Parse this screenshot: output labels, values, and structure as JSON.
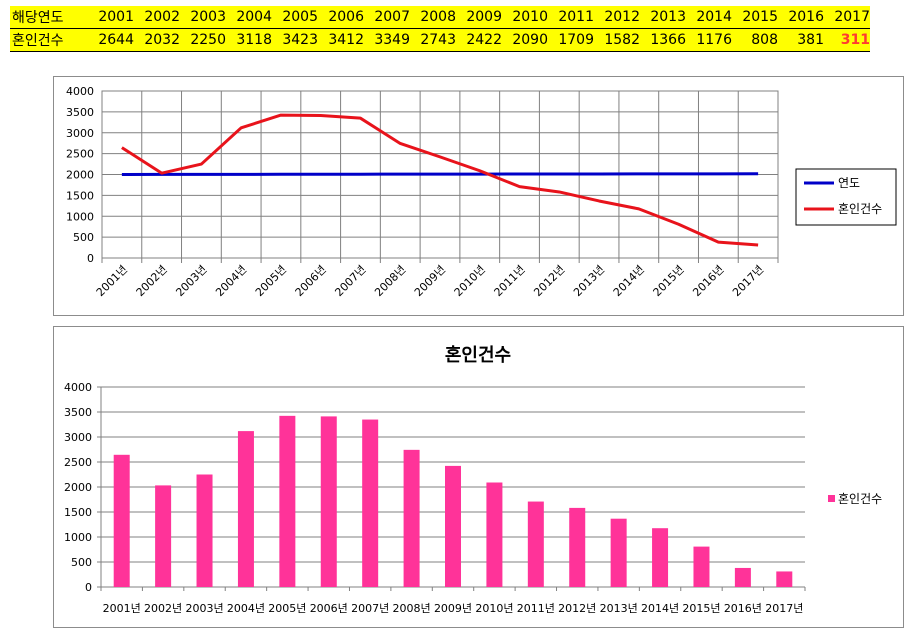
{
  "table": {
    "row1_label": "해당연도",
    "row2_label": "혼인건수",
    "years": [
      "2001",
      "2002",
      "2003",
      "2004",
      "2005",
      "2006",
      "2007",
      "2008",
      "2009",
      "2010",
      "2011",
      "2012",
      "2013",
      "2014",
      "2015",
      "2016",
      "2017"
    ],
    "counts": [
      "2644",
      "2032",
      "2250",
      "3118",
      "3423",
      "3412",
      "3349",
      "2743",
      "2422",
      "2090",
      "1709",
      "1582",
      "1366",
      "1176",
      "808",
      "381",
      "311"
    ],
    "highlight_color": "#ff3b30"
  },
  "chart_data": [
    {
      "type": "line",
      "categories": [
        "2001년",
        "2002년",
        "2003년",
        "2004년",
        "2005년",
        "2006년",
        "2007년",
        "2008년",
        "2009년",
        "2010년",
        "2011년",
        "2012년",
        "2013년",
        "2014년",
        "2015년",
        "2016년",
        "2017년"
      ],
      "series": [
        {
          "name": "연도",
          "color": "#0000c8",
          "values": [
            2001,
            2002,
            2003,
            2004,
            2005,
            2006,
            2007,
            2008,
            2009,
            2010,
            2011,
            2012,
            2013,
            2014,
            2015,
            2016,
            2017
          ]
        },
        {
          "name": "혼인건수",
          "color": "#e8131b",
          "values": [
            2644,
            2032,
            2250,
            3118,
            3423,
            3412,
            3349,
            2743,
            2422,
            2090,
            1709,
            1582,
            1366,
            1176,
            808,
            381,
            311
          ]
        }
      ],
      "yticks": [
        "0",
        "500",
        "1000",
        "1500",
        "2000",
        "2500",
        "3000",
        "3500",
        "4000"
      ],
      "ylim": [
        0,
        4000
      ],
      "grid": true,
      "legend": "right"
    },
    {
      "type": "bar",
      "title": "혼인건수",
      "categories": [
        "2001년",
        "2002년",
        "2003년",
        "2004년",
        "2005년",
        "2006년",
        "2007년",
        "2008년",
        "2009년",
        "2010년",
        "2011년",
        "2012년",
        "2013년",
        "2014년",
        "2015년",
        "2016년",
        "2017년"
      ],
      "series": [
        {
          "name": "혼인건수",
          "color": "#ff3399",
          "values": [
            2644,
            2032,
            2250,
            3118,
            3423,
            3412,
            3349,
            2743,
            2422,
            2090,
            1709,
            1582,
            1366,
            1176,
            808,
            381,
            311
          ]
        }
      ],
      "yticks": [
        "0",
        "500",
        "1000",
        "1500",
        "2000",
        "2500",
        "3000",
        "3500",
        "4000"
      ],
      "ylim": [
        0,
        4000
      ],
      "grid": true,
      "legend": "right"
    }
  ]
}
